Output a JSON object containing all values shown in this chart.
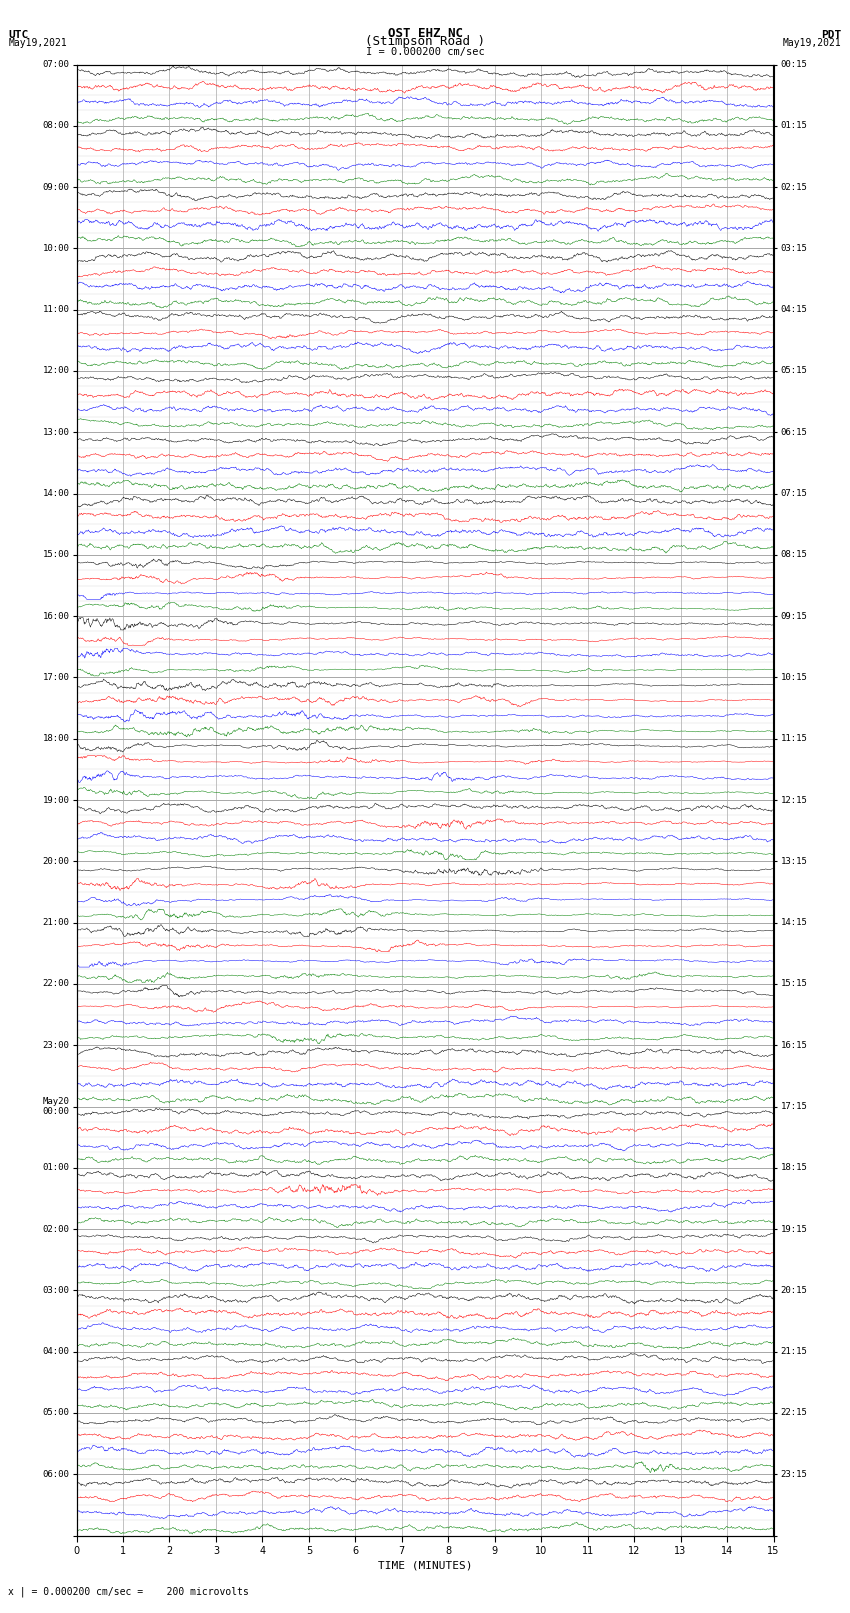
{
  "title_line1": "OST EHZ NC",
  "title_line2": "(Stimpson Road )",
  "scale_label": "I = 0.000200 cm/sec",
  "left_label1": "UTC",
  "left_label2": "May19,2021",
  "right_label1": "PDT",
  "right_label2": "May19,2021",
  "bottom_note": "x | = 0.000200 cm/sec =    200 microvolts",
  "xlabel": "TIME (MINUTES)",
  "utc_hour_labels": [
    "07:00",
    "08:00",
    "09:00",
    "10:00",
    "11:00",
    "12:00",
    "13:00",
    "14:00",
    "15:00",
    "16:00",
    "17:00",
    "18:00",
    "19:00",
    "20:00",
    "21:00",
    "22:00",
    "23:00",
    "May20\n00:00",
    "01:00",
    "02:00",
    "03:00",
    "04:00",
    "05:00",
    "06:00",
    ""
  ],
  "pdt_hour_labels": [
    "00:15",
    "01:15",
    "02:15",
    "03:15",
    "04:15",
    "05:15",
    "06:15",
    "07:15",
    "08:15",
    "09:15",
    "10:15",
    "11:15",
    "12:15",
    "13:15",
    "14:15",
    "15:15",
    "16:15",
    "17:15",
    "18:15",
    "19:15",
    "20:15",
    "21:15",
    "22:15",
    "23:15",
    ""
  ],
  "n_rows": 96,
  "colors": [
    "black",
    "red",
    "blue",
    "green"
  ],
  "bg_color": "white",
  "xmin": 0,
  "xmax": 15,
  "figsize": [
    8.5,
    16.13
  ],
  "dpi": 100
}
